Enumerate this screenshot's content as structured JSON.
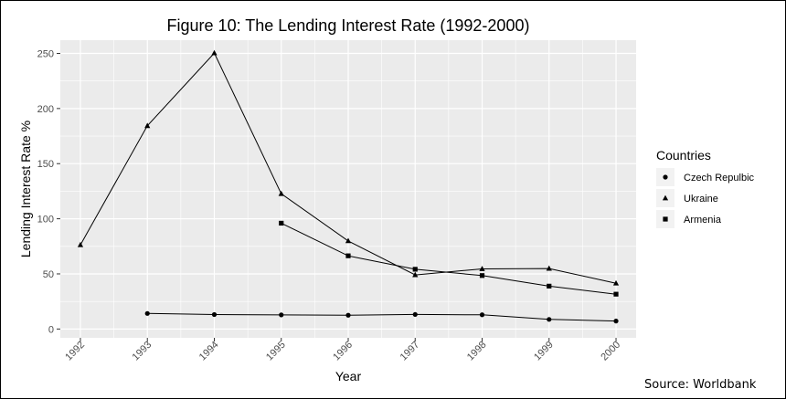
{
  "chart_data": {
    "type": "line",
    "title": "Figure 10: The Lending Interest Rate (1992-2000)",
    "xlabel": "Year",
    "ylabel": "Lending Interest Rate %",
    "x": [
      1992,
      1993,
      1994,
      1995,
      1996,
      1997,
      1998,
      1999,
      2000
    ],
    "x_tick_labels": [
      "1992",
      "1993",
      "1994",
      "1995",
      "1996",
      "1997",
      "1998",
      "1999",
      "2000"
    ],
    "y_ticks": [
      0,
      50,
      100,
      150,
      200,
      250
    ],
    "ylim": [
      -8,
      262
    ],
    "grid": true,
    "legend_title": "Countries",
    "legend_position": "right",
    "series": [
      {
        "name": "Czech Repulbic",
        "marker": "circle",
        "points": [
          [
            1993,
            14.1
          ],
          [
            1994,
            13.1
          ],
          [
            1995,
            12.8
          ],
          [
            1996,
            12.5
          ],
          [
            1997,
            13.2
          ],
          [
            1998,
            12.9
          ],
          [
            1999,
            8.7
          ],
          [
            2000,
            7.2
          ]
        ]
      },
      {
        "name": "Ukraine",
        "marker": "triangle",
        "points": [
          [
            1992,
            76.3
          ],
          [
            1993,
            184.3
          ],
          [
            1994,
            250.3
          ],
          [
            1995,
            122.7
          ],
          [
            1996,
            79.9
          ],
          [
            1997,
            49.1
          ],
          [
            1998,
            54.5
          ],
          [
            1999,
            54.9
          ],
          [
            2000,
            41.5
          ]
        ]
      },
      {
        "name": "Armenia",
        "marker": "square",
        "points": [
          [
            1995,
            96.0
          ],
          [
            1996,
            66.4
          ],
          [
            1997,
            54.2
          ],
          [
            1998,
            48.5
          ],
          [
            1999,
            38.9
          ],
          [
            2000,
            31.6
          ]
        ]
      }
    ],
    "source": "Source: Worldbank"
  }
}
